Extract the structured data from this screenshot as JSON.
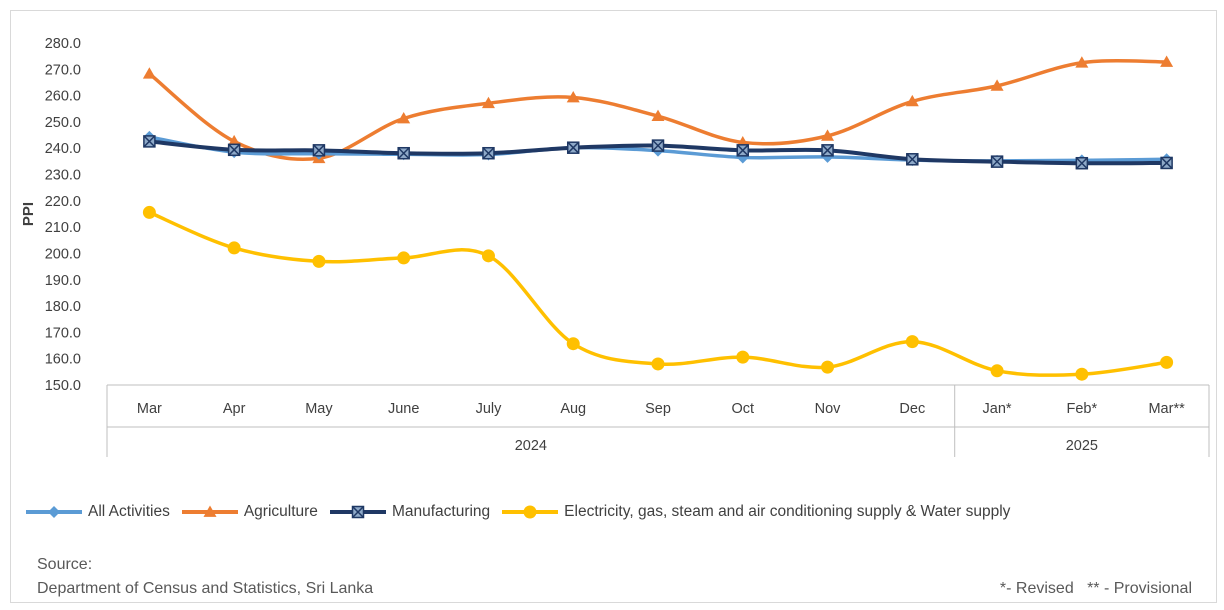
{
  "chart_data": {
    "type": "line",
    "title": "",
    "xlabel": "",
    "ylabel": "PPI",
    "ylim": [
      150,
      280
    ],
    "ytick_step": 10,
    "grid": false,
    "legend_position": "bottom",
    "categories": [
      "Mar",
      "Apr",
      "May",
      "June",
      "July",
      "Aug",
      "Sep",
      "Oct",
      "Nov",
      "Dec",
      "Jan*",
      "Feb*",
      "Mar**"
    ],
    "year_groups": [
      {
        "label": "2024",
        "from": 0,
        "to": 9
      },
      {
        "label": "2025",
        "from": 10,
        "to": 12
      }
    ],
    "series": [
      {
        "name": "All Activities",
        "color": "#5b9bd5",
        "marker": "diamond",
        "values": [
          244.3,
          238.5,
          237.9,
          237.7,
          237.6,
          240.2,
          239.1,
          236.5,
          236.7,
          235.5,
          235.2,
          235.4,
          235.8
        ]
      },
      {
        "name": "Agriculture",
        "color": "#ed7d31",
        "marker": "triangle",
        "values": [
          268.3,
          242.6,
          236.2,
          251.3,
          257.1,
          259.3,
          252.2,
          242.2,
          244.7,
          257.8,
          263.7,
          272.5,
          272.8
        ]
      },
      {
        "name": "Manufacturing",
        "color": "#1f3864",
        "marker": "boxed-x",
        "values": [
          242.6,
          239.4,
          239.2,
          238.1,
          238.1,
          240.2,
          241.0,
          239.2,
          239.2,
          235.8,
          234.9,
          234.3,
          234.4
        ]
      },
      {
        "name": "Electricity, gas, steam and air conditioning supply & Water supply",
        "color": "#ffc000",
        "marker": "circle",
        "values": [
          215.6,
          202.1,
          197.0,
          198.3,
          199.1,
          165.7,
          158.0,
          160.6,
          156.8,
          166.5,
          155.4,
          154.1,
          158.6
        ]
      }
    ]
  },
  "source_label": "Source:",
  "source_text": "Department of Census and Statistics, Sri Lanka",
  "note": "*- Revised   ** - Provisional"
}
